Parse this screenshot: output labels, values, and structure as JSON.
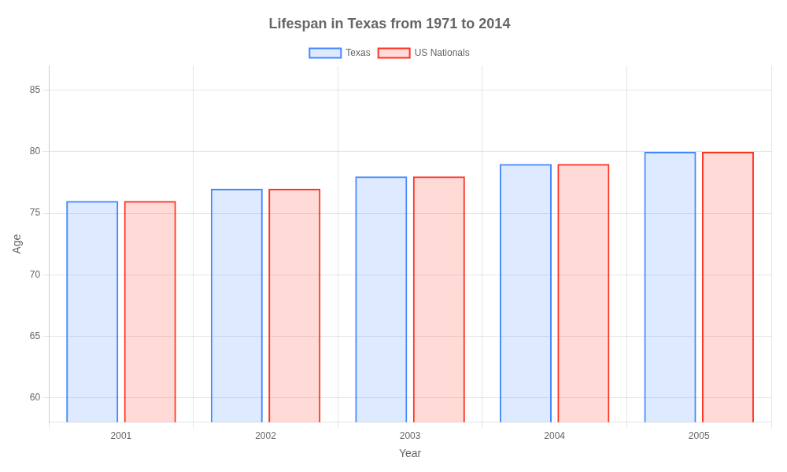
{
  "chart_data": {
    "type": "bar",
    "title": "Lifespan in Texas from 1971 to 2014",
    "x_label": "Year",
    "y_label": "Age",
    "categories": [
      "2001",
      "2002",
      "2003",
      "2004",
      "2005"
    ],
    "series": [
      {
        "name": "Texas",
        "color": "#4488ff",
        "values": [
          76.0,
          77.0,
          78.0,
          79.0,
          80.0
        ]
      },
      {
        "name": "US Nationals",
        "color": "#ff3322",
        "values": [
          76.0,
          77.0,
          78.0,
          79.0,
          80.0
        ]
      }
    ],
    "ylim": [
      58,
      87
    ],
    "yticks": [
      60,
      65,
      70,
      75,
      80,
      85
    ],
    "grid": true,
    "legend": "top"
  }
}
